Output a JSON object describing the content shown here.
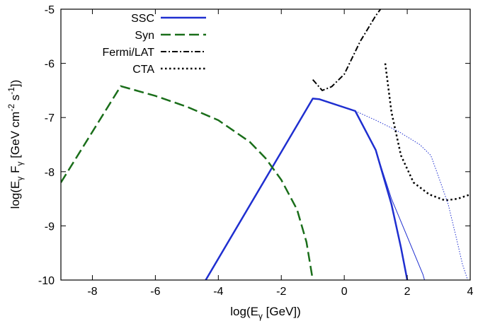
{
  "chart_data": {
    "type": "line",
    "title": "",
    "xlabel": {
      "pre": "log(E",
      "sub": "γ",
      "post": " [GeV])"
    },
    "ylabel": {
      "p1": "log(E",
      "sub1": "γ",
      "p2": " F",
      "sub2": "γ",
      "p3": " [GeV cm",
      "sup1": "-2",
      "p4": " s",
      "sup2": "-1",
      "p5": "])"
    },
    "xlim": [
      -9,
      4
    ],
    "ylim": [
      -10,
      -5
    ],
    "xticks": [
      -8,
      -6,
      -4,
      -2,
      0,
      2,
      4
    ],
    "xtick_labels": [
      "-8",
      "-6",
      "-4",
      "-2",
      "0",
      "2",
      "4"
    ],
    "yticks": [
      -10,
      -9,
      -8,
      -7,
      -6,
      -5
    ],
    "ytick_labels": [
      "-10",
      "-9",
      "-8",
      "-7",
      "-6",
      "-5"
    ],
    "legend_position": "top-right",
    "series": [
      {
        "name": "SSC",
        "color": "#1f2fd0",
        "style": "solid",
        "width": "thick",
        "x": [
          -4.4,
          -1.0,
          -0.8,
          0.35,
          1.0,
          1.5,
          1.8,
          2.0
        ],
        "y": [
          -10.0,
          -6.65,
          -6.66,
          -6.88,
          -7.6,
          -8.6,
          -9.4,
          -10.0
        ]
      },
      {
        "name": "Syn",
        "color": "#1a6e1a",
        "style": "dashed",
        "width": "thick",
        "x": [
          -9.0,
          -7.1,
          -6.0,
          -5.0,
          -4.0,
          -3.0,
          -2.5,
          -2.0,
          -1.5,
          -1.2,
          -1.0
        ],
        "y": [
          -8.2,
          -6.42,
          -6.6,
          -6.8,
          -7.05,
          -7.45,
          -7.75,
          -8.15,
          -8.7,
          -9.3,
          -10.0
        ]
      },
      {
        "name": "Fermi/LAT",
        "color": "#000000",
        "style": "dashdot",
        "width": "normal",
        "x": [
          -1.0,
          -0.7,
          -0.4,
          0.0,
          0.5,
          1.0,
          1.15
        ],
        "y": [
          -6.3,
          -6.5,
          -6.43,
          -6.2,
          -5.6,
          -5.12,
          -5.0
        ]
      },
      {
        "name": "CTA",
        "color": "#000000",
        "style": "dotted",
        "width": "thick",
        "x": [
          1.3,
          1.5,
          1.8,
          2.2,
          2.7,
          3.2,
          3.6,
          4.0
        ],
        "y": [
          -6.0,
          -6.9,
          -7.7,
          -8.2,
          -8.42,
          -8.53,
          -8.5,
          -8.42
        ]
      },
      {
        "name": "",
        "color": "#1f2fd0",
        "style": "dotted",
        "width": "thin",
        "x": [
          0.35,
          1.0,
          1.7,
          2.4,
          2.75,
          3.0,
          3.3,
          3.55,
          3.75,
          3.92
        ],
        "y": [
          -6.88,
          -7.05,
          -7.25,
          -7.5,
          -7.7,
          -8.1,
          -8.6,
          -9.2,
          -9.7,
          -10.0
        ]
      },
      {
        "name": "",
        "color": "#1f2fd0",
        "style": "solid",
        "width": "thin",
        "x": [
          0.35,
          1.0,
          1.5,
          2.0,
          2.5,
          2.55
        ],
        "y": [
          -6.88,
          -7.6,
          -8.5,
          -9.2,
          -9.9,
          -10.0
        ]
      }
    ]
  }
}
